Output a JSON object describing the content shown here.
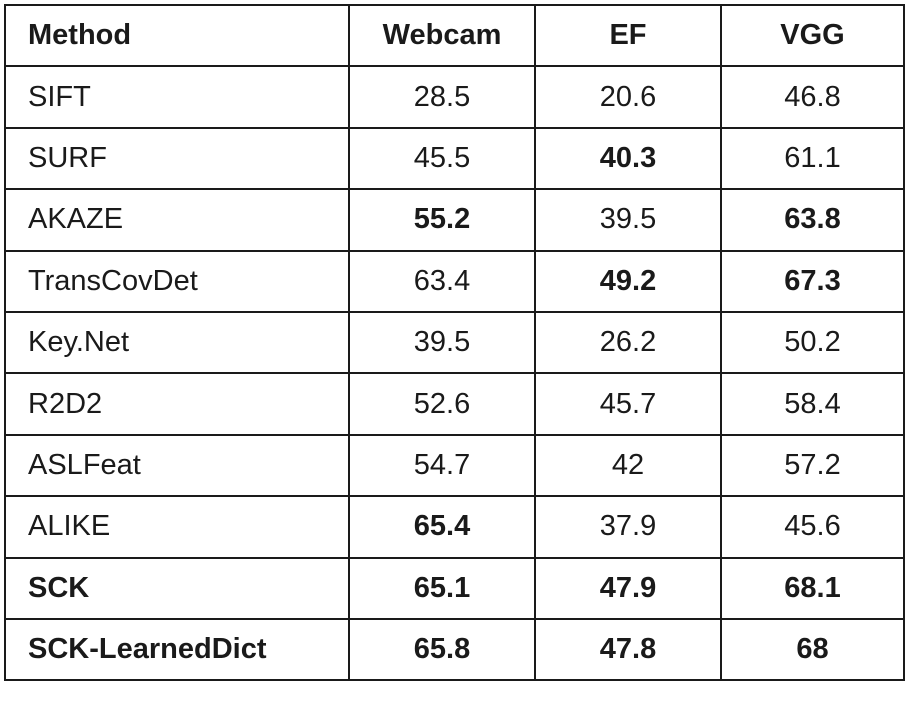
{
  "chart_data": {
    "type": "table",
    "columns": [
      "Method",
      "Webcam",
      "EF",
      "VGG"
    ],
    "rows": [
      {
        "method": "SIFT",
        "values": [
          "28.5",
          "20.6",
          "46.8"
        ],
        "bold": [
          false,
          false,
          false
        ],
        "method_bold": false
      },
      {
        "method": "SURF",
        "values": [
          "45.5",
          "40.3",
          "61.1"
        ],
        "bold": [
          false,
          true,
          false
        ],
        "method_bold": false
      },
      {
        "method": "AKAZE",
        "values": [
          "55.2",
          "39.5",
          "63.8"
        ],
        "bold": [
          true,
          false,
          true
        ],
        "method_bold": false
      },
      {
        "method": "TransCovDet",
        "values": [
          "63.4",
          "49.2",
          "67.3"
        ],
        "bold": [
          false,
          true,
          true
        ],
        "method_bold": false
      },
      {
        "method": "Key.Net",
        "values": [
          "39.5",
          "26.2",
          "50.2"
        ],
        "bold": [
          false,
          false,
          false
        ],
        "method_bold": false
      },
      {
        "method": "R2D2",
        "values": [
          "52.6",
          "45.7",
          "58.4"
        ],
        "bold": [
          false,
          false,
          false
        ],
        "method_bold": false
      },
      {
        "method": "ASLFeat",
        "values": [
          "54.7",
          "42",
          "57.2"
        ],
        "bold": [
          false,
          false,
          false
        ],
        "method_bold": false
      },
      {
        "method": "ALIKE",
        "values": [
          "65.4",
          "37.9",
          "45.6"
        ],
        "bold": [
          true,
          false,
          false
        ],
        "method_bold": false
      },
      {
        "method": "SCK",
        "values": [
          "65.1",
          "47.9",
          "68.1"
        ],
        "bold": [
          true,
          true,
          true
        ],
        "method_bold": true
      },
      {
        "method": "SCK-LearnedDict",
        "values": [
          "65.8",
          "47.8",
          "68"
        ],
        "bold": [
          true,
          true,
          true
        ],
        "method_bold": true
      }
    ]
  }
}
